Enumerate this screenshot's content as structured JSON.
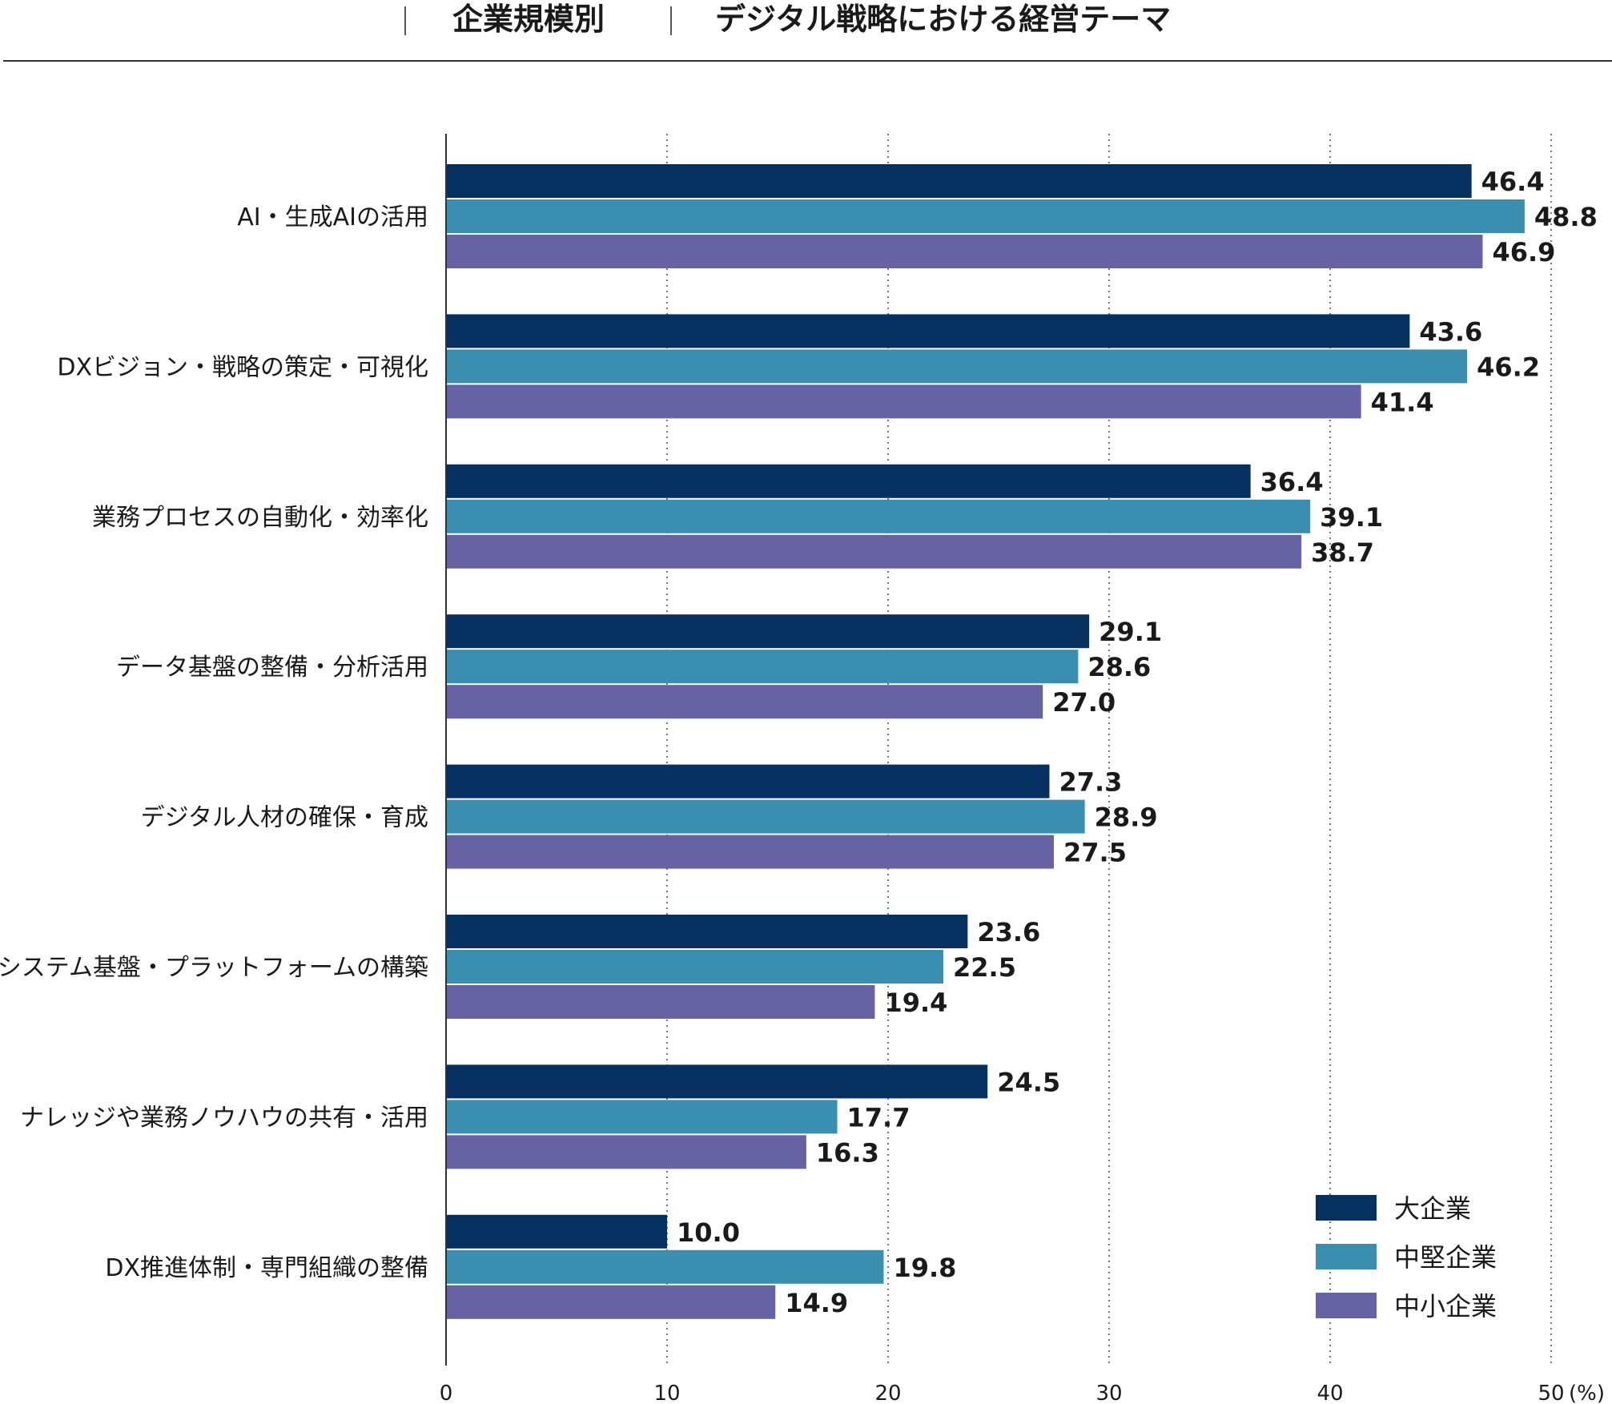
{
  "header": {
    "group_label": "企業規模別",
    "title": "デジタル戦略における経営テーマ"
  },
  "colors": {
    "large": "#06305f",
    "mid": "#3a8fb0",
    "small": "#6762a4"
  },
  "chart_data": {
    "type": "bar",
    "orientation": "horizontal",
    "title": "デジタル戦略における経営テーマ",
    "categories": [
      "AI・生成AIの活用",
      "DXビジョン・戦略の策定・可視化",
      "業務プロセスの自動化・効率化",
      "データ基盤の整備・分析活用",
      "デジタル人材の確保・育成",
      "システム基盤・プラットフォームの構築",
      "ナレッジや業務ノウハウの共有・活用",
      "DX推進体制・専門組織の整備"
    ],
    "series": [
      {
        "name": "大企業",
        "key": "large",
        "values": [
          46.4,
          43.6,
          36.4,
          29.1,
          27.3,
          23.6,
          24.5,
          10.0
        ]
      },
      {
        "name": "中堅企業",
        "key": "mid",
        "values": [
          48.8,
          46.2,
          39.1,
          28.6,
          28.9,
          22.5,
          17.7,
          19.8
        ]
      },
      {
        "name": "中小企業",
        "key": "small",
        "values": [
          46.9,
          41.4,
          38.7,
          27.0,
          27.5,
          19.4,
          16.3,
          14.9
        ]
      }
    ],
    "xlim": [
      0,
      50
    ],
    "xticks": [
      "0",
      "10",
      "20",
      "30",
      "40",
      "50"
    ],
    "unit_label": "(%)",
    "grid": true,
    "legend_position": "bottom-right"
  }
}
